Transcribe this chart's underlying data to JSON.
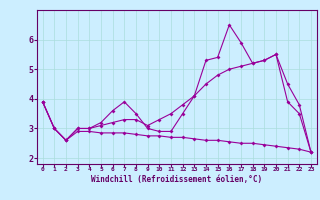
{
  "xlabel": "Windchill (Refroidissement éolien,°C)",
  "bg_color": "#cceeff",
  "line_color": "#990099",
  "grid_color": "#aadddd",
  "axis_color": "#660066",
  "xlim": [
    -0.5,
    23.5
  ],
  "ylim": [
    1.8,
    7.0
  ],
  "xticks": [
    0,
    1,
    2,
    3,
    4,
    5,
    6,
    7,
    8,
    9,
    10,
    11,
    12,
    13,
    14,
    15,
    16,
    17,
    18,
    19,
    20,
    21,
    22,
    23
  ],
  "yticks": [
    2,
    3,
    4,
    5,
    6
  ],
  "line1_x": [
    0,
    1,
    2,
    3,
    4,
    5,
    6,
    7,
    8,
    9,
    10,
    11,
    12,
    13,
    14,
    15,
    16,
    17,
    18,
    19,
    20,
    21,
    22,
    23
  ],
  "line1_y": [
    3.9,
    3.0,
    2.6,
    3.0,
    3.0,
    3.2,
    3.6,
    3.9,
    3.5,
    3.0,
    2.9,
    2.9,
    3.5,
    4.1,
    5.3,
    5.4,
    6.5,
    5.9,
    5.2,
    5.3,
    5.5,
    3.9,
    3.5,
    2.2
  ],
  "line2_x": [
    0,
    1,
    2,
    3,
    4,
    5,
    6,
    7,
    8,
    9,
    10,
    11,
    12,
    13,
    14,
    15,
    16,
    17,
    18,
    19,
    20,
    21,
    22,
    23
  ],
  "line2_y": [
    3.9,
    3.0,
    2.6,
    3.0,
    3.0,
    3.1,
    3.2,
    3.3,
    3.3,
    3.1,
    3.3,
    3.5,
    3.8,
    4.1,
    4.5,
    4.8,
    5.0,
    5.1,
    5.2,
    5.3,
    5.5,
    4.5,
    3.8,
    2.2
  ],
  "line3_x": [
    0,
    1,
    2,
    3,
    4,
    5,
    6,
    7,
    8,
    9,
    10,
    11,
    12,
    13,
    14,
    15,
    16,
    17,
    18,
    19,
    20,
    21,
    22,
    23
  ],
  "line3_y": [
    3.9,
    3.0,
    2.6,
    2.9,
    2.9,
    2.85,
    2.85,
    2.85,
    2.8,
    2.75,
    2.75,
    2.7,
    2.7,
    2.65,
    2.6,
    2.6,
    2.55,
    2.5,
    2.5,
    2.45,
    2.4,
    2.35,
    2.3,
    2.2
  ]
}
